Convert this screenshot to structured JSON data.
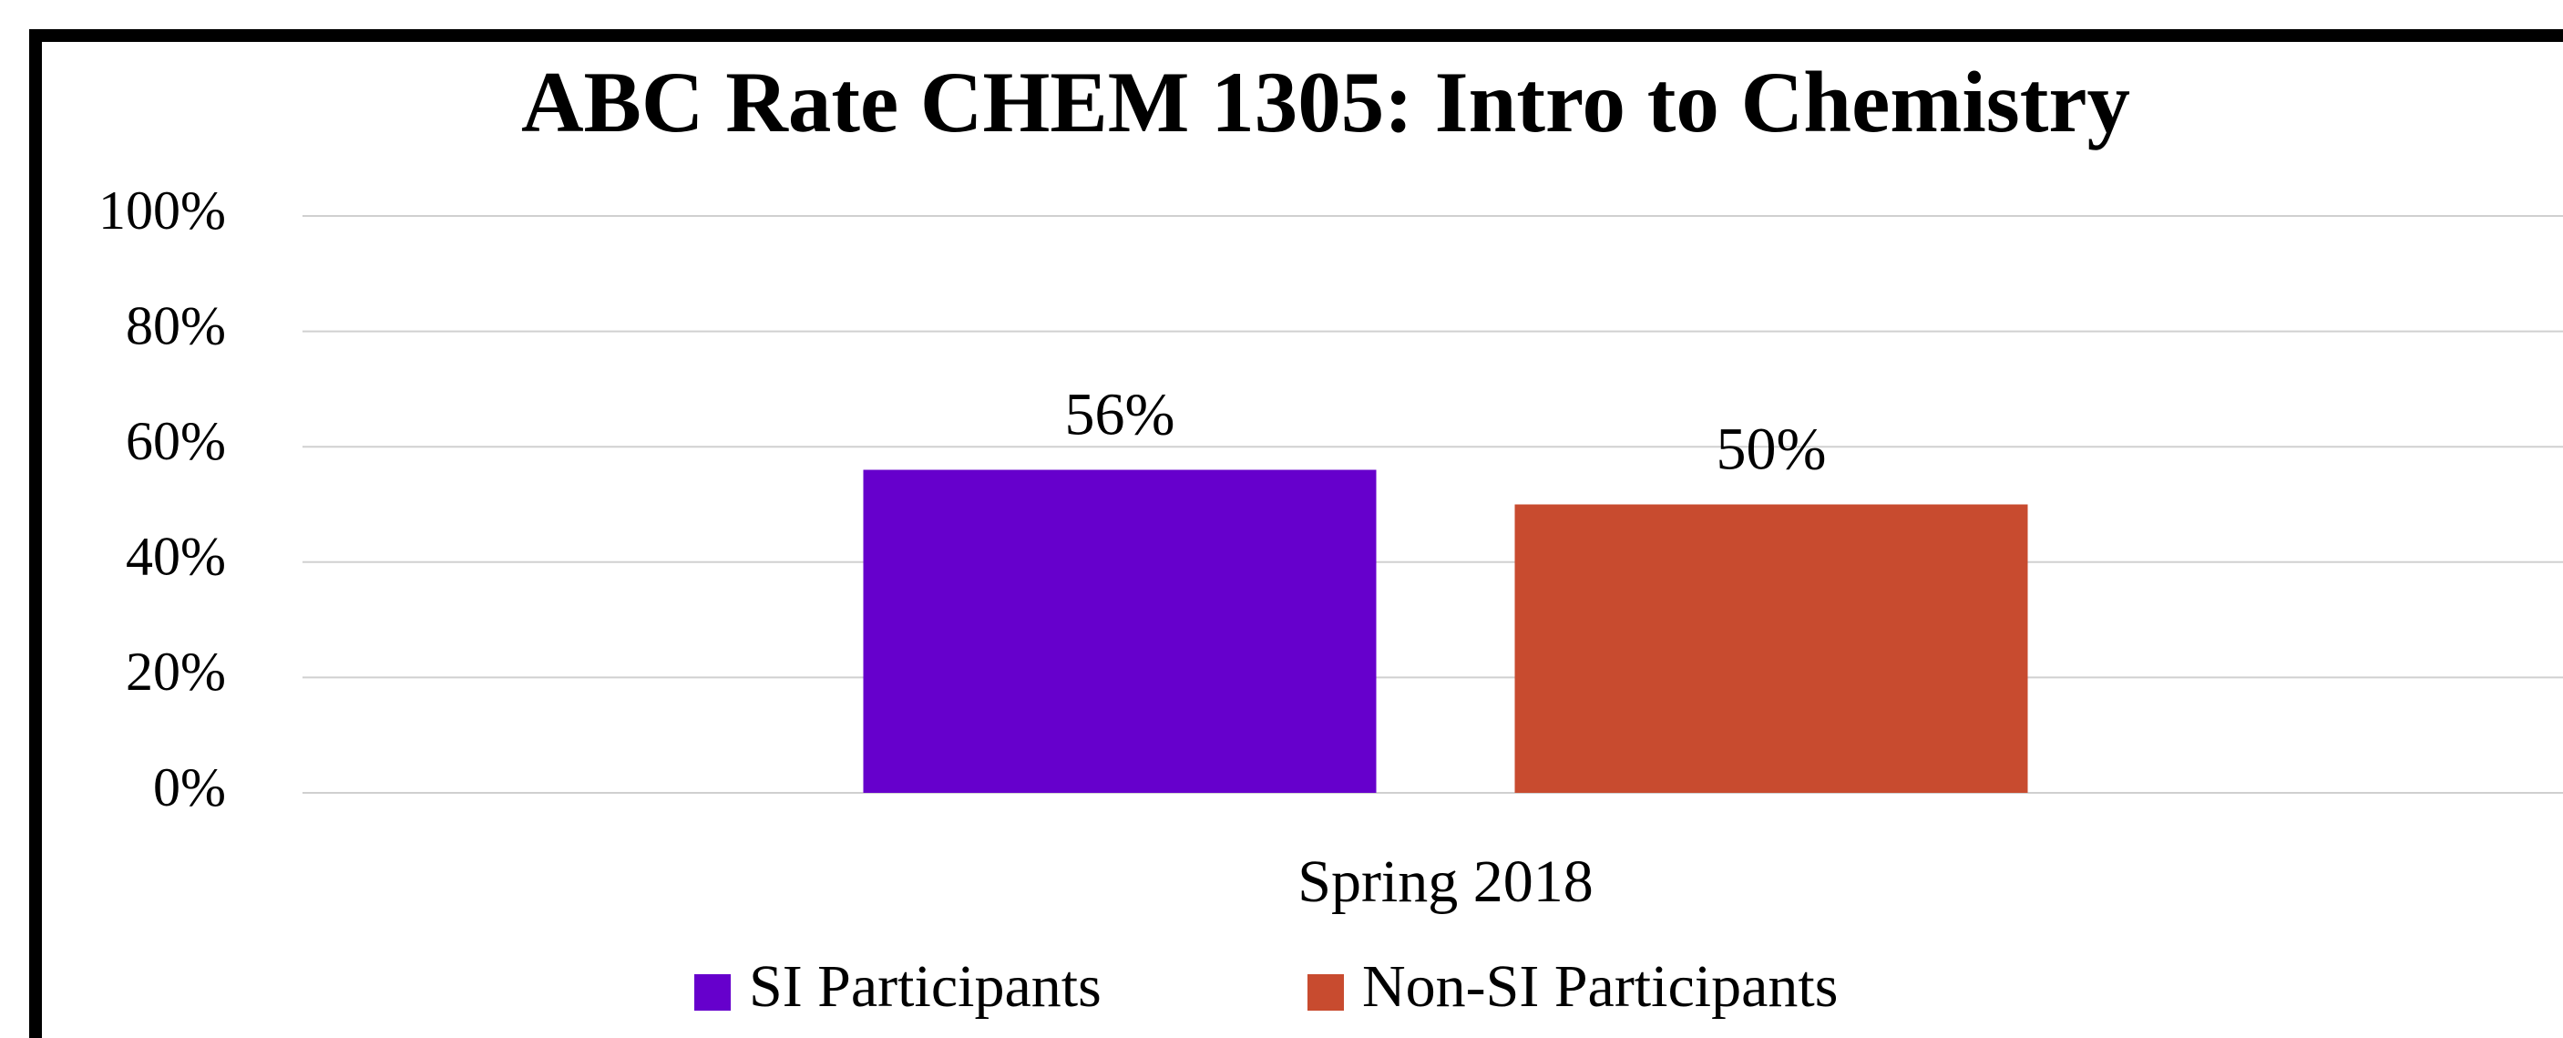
{
  "chart_data": {
    "type": "bar",
    "title": "ABC Rate CHEM 1305: Intro to Chemistry",
    "categories": [
      "Spring 2018"
    ],
    "series": [
      {
        "name": "SI Participants",
        "color": "#6600cc",
        "values": [
          56
        ],
        "value_labels": [
          "56%"
        ]
      },
      {
        "name": "Non-SI Participants",
        "color": "#c84b2f",
        "values": [
          50
        ],
        "value_labels": [
          "50%"
        ]
      }
    ],
    "ylim": [
      0,
      100
    ],
    "yticks": [
      {
        "value": 0,
        "label": "0%"
      },
      {
        "value": 20,
        "label": "20%"
      },
      {
        "value": 40,
        "label": "40%"
      },
      {
        "value": 60,
        "label": "60%"
      },
      {
        "value": 80,
        "label": "80%"
      },
      {
        "value": 100,
        "label": "100%"
      }
    ],
    "grid": true,
    "legend": "bottom"
  }
}
